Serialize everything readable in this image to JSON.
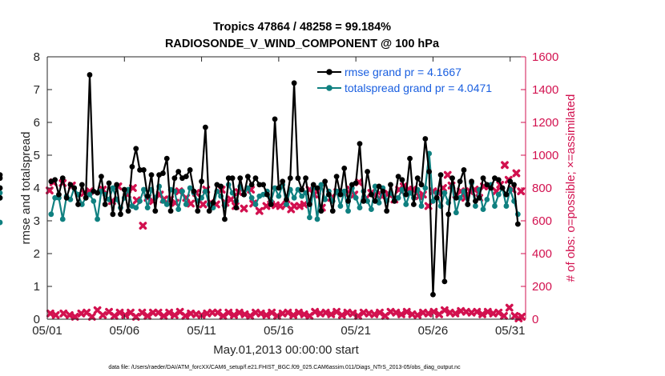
{
  "chart_data": {
    "type": "line",
    "title_line1": "Tropics 47864 / 48258 = 99.184%",
    "title_line2": "RADIOSONDE_V_WIND_COMPONENT @ 100 hPa",
    "xlabel": "May.01,2013 00:00:00 start",
    "ylabel_left": "rmse and totalspread",
    "ylabel_right": "# of obs: o=possible; ×=assimilated",
    "footnote": "data file: /Users/raeder/DAI/ATM_forcXX/CAM6_setup/f.e21.FHIST_BGC.f09_025.CAM6assim.011/Diags_NTrS_2013-05/obs_diag_output.nc",
    "xlim": [
      1,
      32
    ],
    "ylim_left": [
      0,
      8
    ],
    "ylim_right": [
      0,
      1600
    ],
    "x_ticks": [
      1,
      6,
      11,
      16,
      21,
      26,
      31
    ],
    "x_tick_labels": [
      "05/01",
      "05/06",
      "05/11",
      "05/16",
      "05/21",
      "05/26",
      "05/31"
    ],
    "y_left_ticks": [
      0,
      1,
      2,
      3,
      4,
      5,
      6,
      7,
      8
    ],
    "y_left_tick_labels": [
      "0",
      "1",
      "2",
      "3",
      "4",
      "5",
      "6",
      "7",
      "8"
    ],
    "y_right_ticks": [
      0,
      200,
      400,
      600,
      800,
      1000,
      1200,
      1400,
      1600
    ],
    "y_right_tick_labels": [
      "0",
      "200",
      "400",
      "600",
      "800",
      "1000",
      "1200",
      "1400",
      "1600"
    ],
    "legend": [
      {
        "name": "rmse grand pr = 4.1667",
        "color": "#000000"
      },
      {
        "name": "totalspread grand pr = 4.0471",
        "color": "#0f8080"
      }
    ],
    "colors": {
      "rmse": "#000000",
      "spread": "#0f8080",
      "obs": "#d2114f",
      "axis_left": "#262626",
      "axis_right": "#d2114f",
      "legend_text": "#1a5fe0"
    },
    "x": [
      1.25,
      1.5,
      1.75,
      2.0,
      2.25,
      2.5,
      2.75,
      3.0,
      3.25,
      3.5,
      3.75,
      4.0,
      4.25,
      4.5,
      4.75,
      5.0,
      5.25,
      5.5,
      5.75,
      6.0,
      6.25,
      6.5,
      6.75,
      7.0,
      7.25,
      7.5,
      7.75,
      8.0,
      8.25,
      8.5,
      8.75,
      9.0,
      9.25,
      9.5,
      9.75,
      10.0,
      10.25,
      10.5,
      10.75,
      11.0,
      11.25,
      11.5,
      11.75,
      12.0,
      12.25,
      12.5,
      12.75,
      13.0,
      13.25,
      13.5,
      13.75,
      14.0,
      14.25,
      14.5,
      14.75,
      15.0,
      15.25,
      15.5,
      15.75,
      16.0,
      16.25,
      16.5,
      16.75,
      17.0,
      17.25,
      17.5,
      17.75,
      18.0,
      18.25,
      18.5,
      18.75,
      19.0,
      19.25,
      19.5,
      19.75,
      20.0,
      20.25,
      20.5,
      20.75,
      21.0,
      21.25,
      21.5,
      21.75,
      22.0,
      22.25,
      22.5,
      22.75,
      23.0,
      23.25,
      23.5,
      23.75,
      24.0,
      24.25,
      24.5,
      24.75,
      25.0,
      25.25,
      25.5,
      25.75,
      26.0,
      26.25,
      26.5,
      26.75,
      27.0,
      27.25,
      27.5,
      27.75,
      28.0,
      28.25,
      28.5,
      28.75,
      29.0,
      29.25,
      29.5,
      29.75,
      30.0,
      30.25,
      30.5,
      30.75,
      31.0,
      31.25,
      31.5
    ],
    "rmse": [
      4.2,
      4.25,
      3.8,
      4.3,
      3.7,
      4.1,
      4.0,
      3.5,
      4.1,
      3.7,
      7.45,
      3.9,
      3.85,
      4.35,
      3.5,
      4.15,
      3.2,
      4.1,
      3.2,
      3.95,
      3.3,
      4.65,
      5.2,
      4.55,
      4.55,
      3.75,
      4.4,
      3.3,
      4.4,
      4.45,
      4.9,
      3.3,
      4.3,
      4.5,
      4.3,
      4.35,
      4.55,
      3.9,
      3.3,
      4.2,
      5.85,
      3.3,
      3.55,
      4.1,
      4.05,
      3.05,
      4.3,
      4.3,
      3.4,
      4.3,
      3.8,
      4.35,
      4.1,
      4.3,
      4.1,
      4.1,
      3.8,
      3.5,
      6.1,
      4.0,
      4.2,
      3.65,
      4.3,
      7.2,
      4.3,
      3.95,
      4.3,
      3.5,
      4.1,
      4.0,
      3.3,
      4.2,
      3.8,
      3.3,
      4.35,
      3.8,
      4.6,
      3.6,
      4.1,
      4.15,
      5.35,
      3.6,
      4.5,
      3.8,
      3.6,
      4.05,
      3.9,
      3.3,
      4.1,
      3.6,
      4.35,
      4.25,
      3.8,
      4.9,
      3.5,
      4.3,
      4.1,
      5.5,
      4.5,
      0.75,
      3.7,
      4.4,
      1.15,
      3.2,
      4.3,
      3.7,
      4.2,
      4.55,
      3.5,
      4.2,
      3.6,
      3.7,
      4.3,
      4.1,
      4.0,
      4.3,
      4.25,
      4.0,
      3.8,
      4.2,
      4.1,
      2.9,
      4.4,
      4.3,
      4.0,
      3.7
    ],
    "spread": [
      3.2,
      3.7,
      3.7,
      3.05,
      3.75,
      3.65,
      4.0,
      3.8,
      3.5,
      3.7,
      3.8,
      3.6,
      3.05,
      3.9,
      3.8,
      3.65,
      4.0,
      3.65,
      3.4,
      3.7,
      3.95,
      3.45,
      3.4,
      3.6,
      3.95,
      3.4,
      3.95,
      3.7,
      4.05,
      3.6,
      3.5,
      3.95,
      3.9,
      3.35,
      3.9,
      3.5,
      4.0,
      3.85,
      3.6,
      3.7,
      3.9,
      3.5,
      3.4,
      3.9,
      3.75,
      3.45,
      4.1,
      3.85,
      3.6,
      4.05,
      3.8,
      4.0,
      3.7,
      3.5,
      3.75,
      3.8,
      3.9,
      3.6,
      4.0,
      3.75,
      4.1,
      3.5,
      3.95,
      3.7,
      3.95,
      3.75,
      3.85,
      3.1,
      4.0,
      3.05,
      4.1,
      3.65,
      3.9,
      3.6,
      3.9,
      3.45,
      3.9,
      3.3,
      4.0,
      3.7,
      3.4,
      3.9,
      3.6,
      3.35,
      4.05,
      3.55,
      4.0,
      3.6,
      3.85,
      3.65,
      3.7,
      3.95,
      3.5,
      3.85,
      3.7,
      3.95,
      3.45,
      4.0,
      5.05,
      3.6,
      3.85,
      3.45,
      3.85,
      3.55,
      4.05,
      3.25,
      3.7,
      3.9,
      3.5,
      4.15,
      3.45,
      3.95,
      3.35,
      3.65,
      4.1,
      3.45,
      3.8,
      4.0,
      3.45,
      3.95,
      3.6,
      3.2,
      4.0,
      3.85,
      3.7,
      2.95
    ],
    "obs_assim_high": [
      [
        1.15,
        785
      ],
      [
        1.4,
        835
      ],
      [
        2.0,
        830
      ],
      [
        2.6,
        815
      ],
      [
        3.4,
        770
      ],
      [
        3.75,
        780
      ],
      [
        4.6,
        790
      ],
      [
        5.2,
        720
      ],
      [
        5.6,
        810
      ],
      [
        6.2,
        760
      ],
      [
        6.55,
        800
      ],
      [
        6.8,
        725
      ],
      [
        7.2,
        570
      ],
      [
        7.5,
        740
      ],
      [
        7.85,
        720
      ],
      [
        8.3,
        760
      ],
      [
        8.55,
        730
      ],
      [
        8.95,
        730
      ],
      [
        9.3,
        710
      ],
      [
        9.55,
        780
      ],
      [
        10.0,
        740
      ],
      [
        10.3,
        705
      ],
      [
        10.65,
        770
      ],
      [
        11.1,
        700
      ],
      [
        11.3,
        790
      ],
      [
        11.6,
        710
      ],
      [
        11.95,
        700
      ],
      [
        12.3,
        790
      ],
      [
        12.55,
        710
      ],
      [
        12.9,
        730
      ],
      [
        13.2,
        690
      ],
      [
        13.4,
        775
      ],
      [
        13.75,
        675
      ],
      [
        14.2,
        790
      ],
      [
        14.35,
        705
      ],
      [
        14.75,
        660
      ],
      [
        15.2,
        690
      ],
      [
        15.5,
        700
      ],
      [
        15.8,
        695
      ],
      [
        16.1,
        690
      ],
      [
        16.5,
        700
      ],
      [
        16.8,
        670
      ],
      [
        17.0,
        690
      ],
      [
        17.35,
        690
      ],
      [
        17.65,
        700
      ],
      [
        18.0,
        790
      ],
      [
        18.3,
        760
      ],
      [
        18.5,
        780
      ],
      [
        18.8,
        680
      ],
      [
        19.4,
        740
      ],
      [
        19.8,
        775
      ],
      [
        20.2,
        770
      ],
      [
        20.65,
        790
      ],
      [
        20.9,
        760
      ],
      [
        21.2,
        835
      ],
      [
        21.6,
        730
      ],
      [
        22.0,
        770
      ],
      [
        22.3,
        760
      ],
      [
        22.7,
        750
      ],
      [
        23.1,
        765
      ],
      [
        23.5,
        730
      ],
      [
        23.8,
        790
      ],
      [
        24.1,
        810
      ],
      [
        24.45,
        790
      ],
      [
        24.7,
        790
      ],
      [
        25.1,
        750
      ],
      [
        25.35,
        760
      ],
      [
        25.7,
        690
      ],
      [
        26.0,
        780
      ],
      [
        26.35,
        770
      ],
      [
        26.65,
        800
      ],
      [
        26.95,
        880
      ],
      [
        27.2,
        815
      ],
      [
        27.5,
        760
      ],
      [
        27.8,
        780
      ],
      [
        28.1,
        740
      ],
      [
        28.4,
        780
      ],
      [
        28.7,
        790
      ],
      [
        29.0,
        740
      ],
      [
        29.3,
        810
      ],
      [
        29.6,
        810
      ],
      [
        30.1,
        780
      ],
      [
        30.35,
        820
      ],
      [
        30.65,
        940
      ],
      [
        30.9,
        850
      ],
      [
        31.15,
        790
      ],
      [
        31.4,
        890
      ],
      [
        31.7,
        780
      ]
    ],
    "obs_assim_low": [
      [
        1.2,
        35
      ],
      [
        1.55,
        25
      ],
      [
        2.05,
        35
      ],
      [
        2.45,
        25
      ],
      [
        2.8,
        15
      ],
      [
        3.2,
        35
      ],
      [
        3.55,
        40
      ],
      [
        3.9,
        15
      ],
      [
        4.25,
        55
      ],
      [
        4.6,
        25
      ],
      [
        5.0,
        45
      ],
      [
        5.35,
        20
      ],
      [
        5.7,
        40
      ],
      [
        6.05,
        25
      ],
      [
        6.4,
        40
      ],
      [
        6.75,
        15
      ],
      [
        7.15,
        40
      ],
      [
        7.5,
        20
      ],
      [
        7.85,
        40
      ],
      [
        8.2,
        40
      ],
      [
        8.55,
        20
      ],
      [
        8.9,
        40
      ],
      [
        9.25,
        25
      ],
      [
        9.6,
        45
      ],
      [
        9.95,
        20
      ],
      [
        10.3,
        35
      ],
      [
        10.65,
        30
      ],
      [
        11.0,
        25
      ],
      [
        11.35,
        35
      ],
      [
        11.7,
        40
      ],
      [
        12.05,
        40
      ],
      [
        12.4,
        20
      ],
      [
        12.75,
        40
      ],
      [
        13.1,
        25
      ],
      [
        13.45,
        40
      ],
      [
        13.8,
        30
      ],
      [
        14.15,
        20
      ],
      [
        14.5,
        40
      ],
      [
        14.85,
        35
      ],
      [
        15.2,
        25
      ],
      [
        15.55,
        40
      ],
      [
        15.9,
        20
      ],
      [
        16.25,
        35
      ],
      [
        16.6,
        40
      ],
      [
        16.95,
        25
      ],
      [
        17.3,
        40
      ],
      [
        17.65,
        30
      ],
      [
        18.0,
        20
      ],
      [
        18.35,
        45
      ],
      [
        18.7,
        35
      ],
      [
        19.05,
        40
      ],
      [
        19.4,
        30
      ],
      [
        19.75,
        45
      ],
      [
        20.1,
        25
      ],
      [
        20.45,
        40
      ],
      [
        20.8,
        35
      ],
      [
        21.15,
        20
      ],
      [
        21.5,
        40
      ],
      [
        21.85,
        35
      ],
      [
        22.2,
        30
      ],
      [
        22.55,
        40
      ],
      [
        22.9,
        20
      ],
      [
        23.25,
        45
      ],
      [
        23.6,
        40
      ],
      [
        23.95,
        30
      ],
      [
        24.3,
        45
      ],
      [
        24.65,
        30
      ],
      [
        25.0,
        25
      ],
      [
        25.35,
        40
      ],
      [
        25.7,
        35
      ],
      [
        26.05,
        45
      ],
      [
        26.4,
        30
      ],
      [
        26.75,
        55
      ],
      [
        27.1,
        40
      ],
      [
        27.45,
        35
      ],
      [
        27.8,
        50
      ],
      [
        28.15,
        45
      ],
      [
        28.5,
        40
      ],
      [
        28.85,
        45
      ],
      [
        29.2,
        30
      ],
      [
        29.55,
        45
      ],
      [
        29.9,
        35
      ],
      [
        30.25,
        40
      ],
      [
        30.6,
        20
      ],
      [
        30.95,
        70
      ],
      [
        31.3,
        20
      ],
      [
        31.55,
        5
      ],
      [
        31.75,
        15
      ]
    ]
  }
}
